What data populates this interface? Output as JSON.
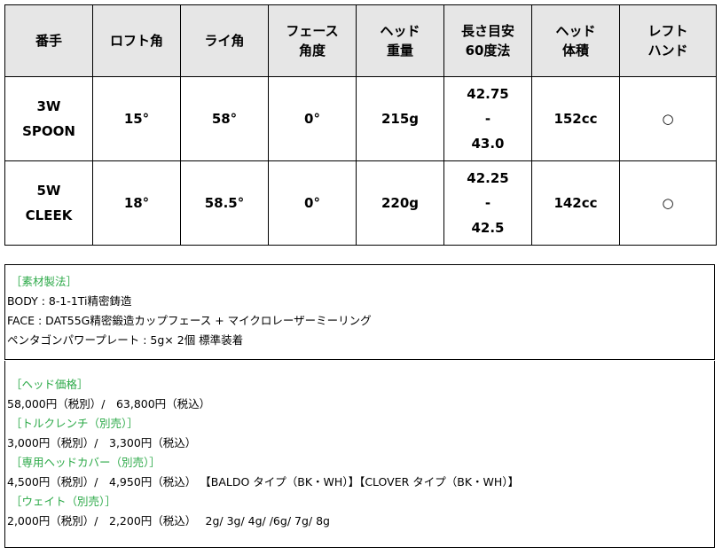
{
  "table": {
    "headers": [
      "番手",
      "ロフト角",
      "ライ角",
      "フェース\n角度",
      "ヘッド\n重量",
      "長さ目安\n60度法",
      "ヘッド\n体積",
      "レフト\nハンド"
    ],
    "rows": [
      [
        "3W\nSPOON",
        "15°",
        "58°",
        "0°",
        "215g",
        "42.75\n-\n43.0",
        "152cc",
        "○"
      ],
      [
        "5W\nCLEEK",
        "18°",
        "58.5°",
        "0°",
        "220g",
        "42.25\n-\n42.5",
        "142cc",
        "○"
      ]
    ]
  },
  "materials": {
    "heading": "［素材製法］",
    "lines": [
      "BODY : 8-1-1Ti精密鋳造",
      "FACE : DAT55G精密鍛造カップフェース + マイクロレーザーミーリング",
      "ペンタゴンパワープレート : 5g× 2個 標準装着"
    ]
  },
  "prices": [
    {
      "heading": "［ヘッド価格］",
      "text": "58,000円（税別）/　63,800円（税込）"
    },
    {
      "heading": "［トルクレンチ（別売）］",
      "text": "3,000円（税別）/　3,300円（税込）"
    },
    {
      "heading": "［専用ヘッドカバー（別売）］",
      "text": "4,500円（税別）/　4,950円（税込） 【BALDO タイプ（BK・WH）】【CLOVER タイプ（BK・WH）】"
    },
    {
      "heading": "［ウェイト（別売）］",
      "text": "2,000円（税別）/　2,200円（税込）　 2g/ 3g/ 4g/ /6g/ 7g/ 8g"
    }
  ],
  "colors": {
    "heading_green": "#2eaa4a",
    "header_bg": "#e6e6e6"
  }
}
